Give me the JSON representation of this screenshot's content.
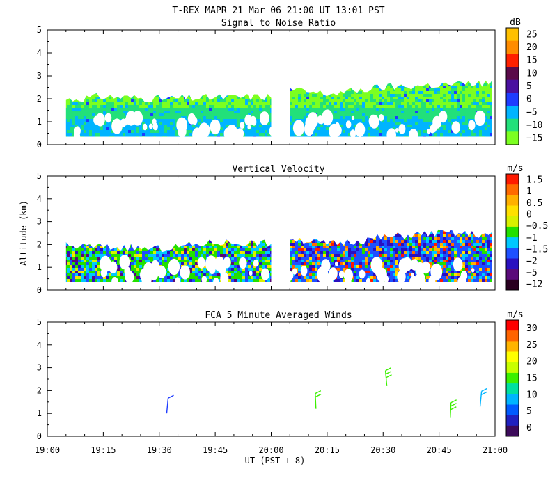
{
  "header": {
    "title": "T-REX   MAPR 21 Mar 06   21:00 UT   13:01  PST"
  },
  "shared_axes": {
    "xlabel": "UT  (PST + 8)",
    "ylabel": "Altitude (km)",
    "xticks": [
      "19:00",
      "19:15",
      "19:30",
      "19:45",
      "20:00",
      "20:15",
      "20:30",
      "20:45",
      "21:00"
    ],
    "yticks": [
      "0",
      "1",
      "2",
      "3",
      "4",
      "5"
    ]
  },
  "chart_data": [
    {
      "type": "heatmap",
      "title": "Signal to Noise Ratio",
      "xlim": [
        "19:00",
        "21:00"
      ],
      "ylim": [
        0,
        5
      ],
      "ylabel": "",
      "xlabel": "",
      "data_gap": [
        "20:00",
        "20:05"
      ],
      "colorbar": {
        "unit": "dB",
        "levels": [
          "25",
          "20",
          "15",
          "10",
          "5",
          "0",
          "−5",
          "−10",
          "−15"
        ],
        "colors": [
          "#ffc000",
          "#ff8c00",
          "#ff2000",
          "#5a0a4a",
          "#4a10a0",
          "#1e3cff",
          "#00b4ff",
          "#22e07a",
          "#7cff20"
        ]
      },
      "profiles": [
        {
          "x": "19:00",
          "top": 1.9,
          "bottom": 0.35
        },
        {
          "x": "19:15",
          "top": 2.1,
          "bottom": 0.35
        },
        {
          "x": "19:30",
          "top": 2.0,
          "bottom": 0.35
        },
        {
          "x": "19:45",
          "top": 2.05,
          "bottom": 0.35
        },
        {
          "x": "20:00",
          "top": 2.1,
          "bottom": 0.35
        },
        {
          "x": "20:05",
          "top": 2.4,
          "bottom": 0.35
        },
        {
          "x": "20:15",
          "top": 2.2,
          "bottom": 0.35
        },
        {
          "x": "20:30",
          "top": 2.5,
          "bottom": 0.35
        },
        {
          "x": "20:45",
          "top": 2.6,
          "bottom": 0.35
        },
        {
          "x": "21:00",
          "top": 2.7,
          "bottom": 0.35
        }
      ]
    },
    {
      "type": "heatmap",
      "title": "Vertical Velocity",
      "xlim": [
        "19:00",
        "21:00"
      ],
      "ylim": [
        0,
        5
      ],
      "ylabel": "Altitude (km)",
      "xlabel": "",
      "data_gap": [
        "20:00",
        "20:05"
      ],
      "colorbar": {
        "unit": "m/s",
        "levels": [
          "1.5",
          "1",
          "0.5",
          "0",
          "−0.5",
          "−1",
          "−1.5",
          "−2",
          "−5",
          "−12"
        ],
        "colors": [
          "#ff1a00",
          "#ff6a00",
          "#ffb000",
          "#ffe000",
          "#d8f000",
          "#22e000",
          "#00c8ff",
          "#1e50ff",
          "#2a10c0",
          "#5a0a7a",
          "#2a0020"
        ]
      },
      "profiles": [
        {
          "x": "19:00",
          "top": 1.95,
          "bottom": 0.35
        },
        {
          "x": "19:15",
          "top": 1.9,
          "bottom": 0.35
        },
        {
          "x": "19:30",
          "top": 1.8,
          "bottom": 0.35
        },
        {
          "x": "19:45",
          "top": 2.1,
          "bottom": 0.35
        },
        {
          "x": "20:00",
          "top": 2.05,
          "bottom": 0.35
        },
        {
          "x": "20:05",
          "top": 2.3,
          "bottom": 0.35
        },
        {
          "x": "20:15",
          "top": 2.0,
          "bottom": 0.35
        },
        {
          "x": "20:30",
          "top": 2.3,
          "bottom": 0.35
        },
        {
          "x": "20:45",
          "top": 2.5,
          "bottom": 0.35
        },
        {
          "x": "21:00",
          "top": 2.4,
          "bottom": 0.35
        }
      ]
    },
    {
      "type": "scatter",
      "title": "FCA 5 Minute Averaged Winds",
      "xlim": [
        "19:00",
        "21:00"
      ],
      "ylim": [
        0,
        5
      ],
      "ylabel": "",
      "xlabel": "UT  (PST + 8)",
      "colorbar": {
        "unit": "m/s",
        "levels": [
          "30",
          "25",
          "20",
          "15",
          "10",
          "5",
          "0"
        ],
        "colors": [
          "#ff0000",
          "#ff6400",
          "#ffb400",
          "#ffff00",
          "#c8ff00",
          "#3cf000",
          "#00e0a0",
          "#00b4ff",
          "#005aff",
          "#2020c0",
          "#3c0a5a"
        ]
      },
      "barbs": [
        {
          "x": "19:32",
          "altitude": 1.0,
          "speed": 3,
          "direction": 200
        },
        {
          "x": "20:12",
          "altitude": 1.2,
          "speed": 12,
          "direction": 170
        },
        {
          "x": "20:31",
          "altitude": 2.2,
          "speed": 14,
          "direction": 160
        },
        {
          "x": "20:48",
          "altitude": 0.8,
          "speed": 13,
          "direction": 190
        },
        {
          "x": "20:56",
          "altitude": 1.3,
          "speed": 9,
          "direction": 200
        }
      ]
    }
  ]
}
